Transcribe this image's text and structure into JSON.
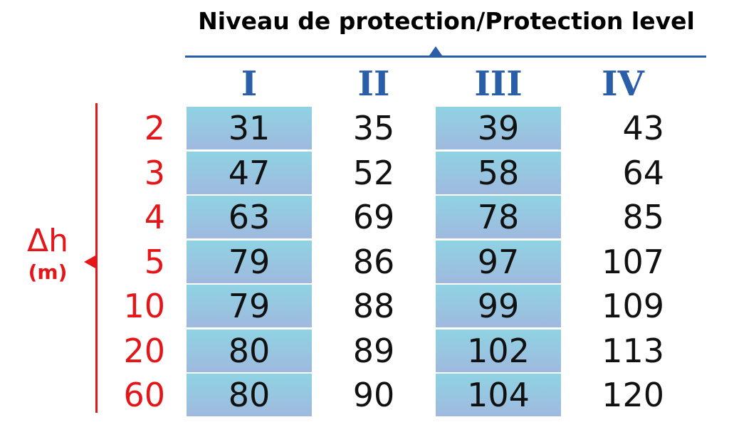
{
  "title": "Niveau de protection/Protection level",
  "columns": [
    "I",
    "II",
    "III",
    "IV"
  ],
  "axis": {
    "symbol": "Δh",
    "unit": "(m)"
  },
  "rows": [
    {
      "label": "2",
      "values": [
        "31",
        "35",
        "39",
        "43"
      ]
    },
    {
      "label": "3",
      "values": [
        "47",
        "52",
        "58",
        "64"
      ]
    },
    {
      "label": "4",
      "values": [
        "63",
        "69",
        "78",
        "85"
      ]
    },
    {
      "label": "5",
      "values": [
        "79",
        "86",
        "97",
        "107"
      ]
    },
    {
      "label": "10",
      "values": [
        "79",
        "88",
        "99",
        "109"
      ]
    },
    {
      "label": "20",
      "values": [
        "80",
        "89",
        "102",
        "113"
      ]
    },
    {
      "label": "60",
      "values": [
        "80",
        "90",
        "104",
        "120"
      ]
    }
  ],
  "colors": {
    "header_blue": "#2a5ea8",
    "axis_red": "#e4161a",
    "shade_top": "#8fd3e3",
    "shade_bottom": "#9fb9de"
  }
}
